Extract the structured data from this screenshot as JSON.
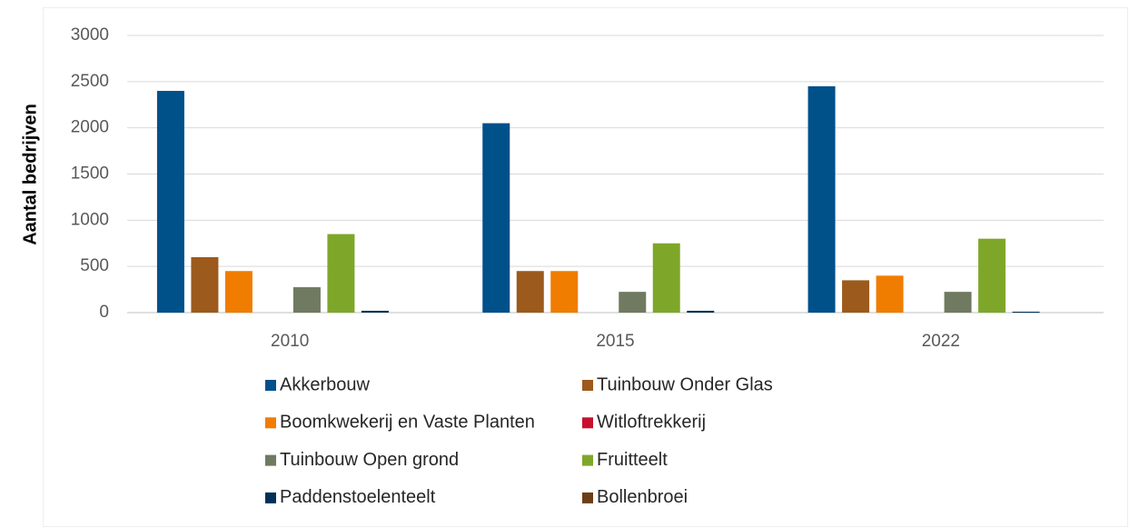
{
  "chart_data": {
    "type": "bar",
    "ylabel": "Aantal bedrijven",
    "categories": [
      "2010",
      "2015",
      "2022"
    ],
    "series": [
      {
        "name": "Akkerbouw",
        "color": "#00508a",
        "values": [
          2400,
          2050,
          2450
        ]
      },
      {
        "name": "Tuinbouw Onder Glas",
        "color": "#9c5a1c",
        "values": [
          600,
          450,
          350
        ]
      },
      {
        "name": "Boomkwekerij en Vaste Planten",
        "color": "#f07d00",
        "values": [
          450,
          450,
          400
        ]
      },
      {
        "name": "Witloftrekkerij",
        "color": "#c8102e",
        "values": [
          0,
          0,
          0
        ]
      },
      {
        "name": "Tuinbouw Open grond",
        "color": "#6f7a60",
        "values": [
          275,
          225,
          225
        ]
      },
      {
        "name": "Fruitteelt",
        "color": "#7ea72a",
        "values": [
          850,
          750,
          800
        ]
      },
      {
        "name": "Paddenstoelenteelt",
        "color": "#003057",
        "values": [
          20,
          20,
          10
        ]
      },
      {
        "name": "Bollenbroei",
        "color": "#6b3e16",
        "values": [
          0,
          0,
          0
        ]
      }
    ],
    "ylim": [
      0,
      3000
    ],
    "yticks": [
      0,
      500,
      1000,
      1500,
      2000,
      2500,
      3000
    ],
    "grid": true,
    "legend": "bottom"
  }
}
